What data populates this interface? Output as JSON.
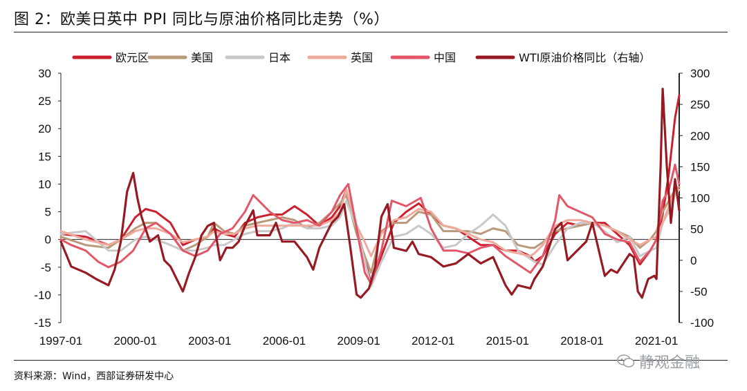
{
  "title": "图 2：欧美日英中 PPI 同比与原油价格同比走势（%）",
  "source": "资料来源：Wind，西部证券研发中心",
  "watermark": "静观金融",
  "chart_data": {
    "type": "line",
    "title": "图 2：欧美日英中 PPI 同比与原油价格同比走势（%）",
    "xlabel": "",
    "ylabel": "",
    "x_ticks": [
      "1997-01",
      "2000-01",
      "2003-01",
      "2006-01",
      "2009-01",
      "2012-01",
      "2015-01",
      "2018-01",
      "2021-01"
    ],
    "ylim": [
      -15,
      30
    ],
    "y_ticks": [
      -15,
      -10,
      -5,
      0,
      5,
      10,
      15,
      20,
      25,
      30
    ],
    "y2lim": [
      -100,
      300
    ],
    "y2_ticks": [
      -100,
      -50,
      0,
      50,
      100,
      150,
      200,
      250,
      300
    ],
    "xlim": [
      "1997-01",
      "2021-12"
    ],
    "legend_position": "top",
    "grid": false,
    "series": [
      {
        "name": "欧元区",
        "color": "#cc1f2e",
        "axis": "left",
        "x": [
          "1997-01",
          "1998-01",
          "1998-12",
          "1999-06",
          "2000-01",
          "2000-06",
          "2000-11",
          "2001-06",
          "2001-12",
          "2002-06",
          "2002-12",
          "2003-03",
          "2003-08",
          "2004-01",
          "2004-06",
          "2004-12",
          "2005-06",
          "2005-12",
          "2006-06",
          "2006-12",
          "2007-06",
          "2007-12",
          "2008-04",
          "2008-07",
          "2008-12",
          "2009-04",
          "2009-07",
          "2009-12",
          "2010-06",
          "2010-12",
          "2011-06",
          "2011-12",
          "2012-06",
          "2012-12",
          "2013-06",
          "2013-12",
          "2014-06",
          "2014-12",
          "2015-06",
          "2015-12",
          "2016-02",
          "2016-06",
          "2016-12",
          "2017-06",
          "2017-12",
          "2018-06",
          "2018-12",
          "2019-06",
          "2019-12",
          "2020-05",
          "2020-10",
          "2021-01",
          "2021-04",
          "2021-07",
          "2021-10",
          "2021-12"
        ],
        "y": [
          1,
          0.5,
          -1,
          0,
          4,
          5.5,
          5,
          3,
          -1,
          0,
          0.5,
          2,
          1,
          0.5,
          3,
          4,
          4.5,
          4.5,
          6,
          4.5,
          2.5,
          4,
          6,
          9,
          2,
          -3.5,
          -8,
          -3,
          3,
          5,
          6.5,
          4.5,
          2.5,
          2,
          0.5,
          -1,
          -1,
          -2,
          -2,
          -3,
          -4,
          -3,
          1,
          3,
          2.5,
          3,
          3,
          1,
          -1,
          -4.5,
          -2,
          0,
          4.5,
          12,
          22,
          26
        ]
      },
      {
        "name": "美国",
        "color": "#b89a7a",
        "axis": "left",
        "x": [
          "1997-01",
          "1998-01",
          "1998-12",
          "1999-06",
          "2000-01",
          "2000-06",
          "2000-11",
          "2001-06",
          "2001-12",
          "2002-06",
          "2002-12",
          "2003-03",
          "2003-08",
          "2004-01",
          "2004-06",
          "2004-12",
          "2005-06",
          "2005-12",
          "2006-06",
          "2006-12",
          "2007-06",
          "2007-12",
          "2008-04",
          "2008-07",
          "2008-12",
          "2009-04",
          "2009-07",
          "2009-12",
          "2010-06",
          "2010-12",
          "2011-06",
          "2011-12",
          "2012-06",
          "2012-12",
          "2013-06",
          "2013-12",
          "2014-06",
          "2014-12",
          "2015-06",
          "2015-12",
          "2016-02",
          "2016-06",
          "2016-12",
          "2017-06",
          "2017-12",
          "2018-06",
          "2018-12",
          "2019-06",
          "2019-12",
          "2020-05",
          "2020-10",
          "2021-01",
          "2021-04",
          "2021-07",
          "2021-10",
          "2021-12"
        ],
        "y": [
          0.5,
          -1,
          -1.5,
          0,
          2,
          3,
          3,
          1,
          -2,
          -1,
          0.5,
          3,
          1.5,
          1,
          2.5,
          3,
          3.5,
          4,
          3.5,
          2,
          3,
          5,
          6.5,
          8,
          1,
          -3,
          -6,
          1.5,
          3,
          3,
          5,
          4.5,
          1.5,
          1.5,
          1.5,
          1,
          2,
          1.5,
          -1,
          -1.5,
          -1.5,
          -0.5,
          1.5,
          2,
          2.5,
          3,
          2.5,
          1.5,
          0.5,
          -1.5,
          0,
          1.5,
          5,
          7,
          9,
          9.5
        ]
      },
      {
        "name": "日本",
        "color": "#c8c8c8",
        "axis": "left",
        "x": [
          "1997-01",
          "1998-01",
          "1998-12",
          "1999-06",
          "2000-01",
          "2000-06",
          "2000-11",
          "2001-06",
          "2001-12",
          "2002-06",
          "2002-12",
          "2003-03",
          "2003-08",
          "2004-01",
          "2004-06",
          "2004-12",
          "2005-06",
          "2005-12",
          "2006-06",
          "2006-12",
          "2007-06",
          "2007-12",
          "2008-04",
          "2008-07",
          "2008-12",
          "2009-04",
          "2009-07",
          "2009-12",
          "2010-06",
          "2010-12",
          "2011-06",
          "2011-12",
          "2012-06",
          "2012-12",
          "2013-06",
          "2013-12",
          "2014-06",
          "2014-12",
          "2015-06",
          "2015-12",
          "2016-02",
          "2016-06",
          "2016-12",
          "2017-06",
          "2017-12",
          "2018-06",
          "2018-12",
          "2019-06",
          "2019-12",
          "2020-05",
          "2020-10",
          "2021-01",
          "2021-04",
          "2021-07",
          "2021-10",
          "2021-12"
        ],
        "y": [
          1,
          1.5,
          -2,
          -2,
          0,
          0.5,
          0,
          -1,
          -2,
          -2,
          -1.5,
          -1,
          -1,
          0,
          1,
          1.5,
          1.5,
          2,
          3,
          2,
          2,
          2.5,
          4,
          7,
          2,
          -4,
          -8.5,
          -4,
          0.5,
          1,
          2.5,
          1,
          -1.5,
          -1,
          1,
          2.5,
          4.5,
          2.5,
          -2,
          -3.5,
          -4,
          -4.5,
          -1,
          2,
          3,
          3,
          1.5,
          -0.5,
          0.5,
          -3,
          -2,
          -1.5,
          3,
          5,
          8,
          9
        ]
      },
      {
        "name": "英国",
        "color": "#eeaa9c",
        "axis": "left",
        "x": [
          "1997-01",
          "1998-01",
          "1998-12",
          "1999-06",
          "2000-01",
          "2000-06",
          "2000-11",
          "2001-06",
          "2001-12",
          "2002-06",
          "2002-12",
          "2003-03",
          "2003-08",
          "2004-01",
          "2004-06",
          "2004-12",
          "2005-06",
          "2005-12",
          "2006-06",
          "2006-12",
          "2007-06",
          "2007-12",
          "2008-04",
          "2008-07",
          "2008-12",
          "2009-04",
          "2009-07",
          "2009-12",
          "2010-06",
          "2010-12",
          "2011-06",
          "2011-12",
          "2012-06",
          "2012-12",
          "2013-06",
          "2013-12",
          "2014-06",
          "2014-12",
          "2015-06",
          "2015-12",
          "2016-02",
          "2016-06",
          "2016-12",
          "2017-06",
          "2017-12",
          "2018-06",
          "2018-12",
          "2019-06",
          "2019-12",
          "2020-05",
          "2020-10",
          "2021-01",
          "2021-04",
          "2021-07",
          "2021-10",
          "2021-12"
        ],
        "y": [
          1.5,
          0,
          -1,
          0,
          1.5,
          2,
          2,
          1,
          -0.5,
          0,
          0.5,
          1.5,
          1,
          1,
          2,
          2.5,
          2.5,
          2.5,
          2.5,
          2.5,
          2.5,
          3.5,
          5,
          9,
          2.5,
          -0.5,
          -3,
          1,
          3.5,
          4,
          5.5,
          5,
          2.5,
          2,
          1,
          0,
          -0.5,
          -2,
          -2.5,
          -3,
          -2.5,
          -1,
          2.5,
          3.5,
          3.5,
          3,
          2.5,
          1.5,
          0,
          -1,
          0,
          0.5,
          3,
          6,
          8.5,
          9
        ]
      },
      {
        "name": "中国",
        "color": "#e25668",
        "axis": "left",
        "x": [
          "1997-01",
          "1997-06",
          "1998-01",
          "1998-07",
          "1998-12",
          "1999-06",
          "1999-12",
          "2000-06",
          "2000-11",
          "2001-06",
          "2001-12",
          "2002-06",
          "2002-12",
          "2003-06",
          "2003-12",
          "2004-06",
          "2004-10",
          "2005-06",
          "2005-12",
          "2006-06",
          "2006-12",
          "2007-06",
          "2007-12",
          "2008-04",
          "2008-08",
          "2008-12",
          "2009-04",
          "2009-07",
          "2009-12",
          "2010-05",
          "2010-12",
          "2011-07",
          "2011-12",
          "2012-06",
          "2012-12",
          "2013-06",
          "2013-12",
          "2014-06",
          "2014-12",
          "2015-06",
          "2015-12",
          "2016-06",
          "2016-12",
          "2017-02",
          "2017-06",
          "2017-12",
          "2018-06",
          "2018-12",
          "2019-06",
          "2019-12",
          "2020-05",
          "2020-10",
          "2021-01",
          "2021-04",
          "2021-07",
          "2021-10",
          "2021-12"
        ],
        "y": [
          0,
          -1,
          -2,
          -4,
          -5,
          -4,
          -2,
          2,
          3,
          1,
          -2,
          -3,
          -2,
          1,
          2,
          5,
          8,
          5,
          3.5,
          3,
          3.5,
          2.5,
          5,
          8,
          10,
          2,
          -6,
          -8,
          -2,
          7,
          6,
          7.5,
          2,
          -2,
          -2,
          -2.5,
          -1.5,
          -1,
          -3,
          -4.5,
          -6,
          -3,
          3.5,
          8,
          6,
          5,
          4,
          1,
          0,
          -0.5,
          -4,
          -2,
          0,
          7,
          9,
          13.5,
          10
        ]
      },
      {
        "name": "WTI原油价格同比（右轴）",
        "color": "#951a22",
        "axis": "right",
        "x": [
          "1997-01",
          "1997-06",
          "1998-01",
          "1998-06",
          "1998-12",
          "1999-03",
          "1999-06",
          "1999-09",
          "1999-12",
          "2000-02",
          "2000-04",
          "2000-08",
          "2000-12",
          "2001-03",
          "2001-06",
          "2001-09",
          "2001-12",
          "2002-03",
          "2002-06",
          "2002-09",
          "2002-12",
          "2003-03",
          "2003-06",
          "2003-09",
          "2003-12",
          "2004-03",
          "2004-06",
          "2004-10",
          "2004-12",
          "2005-06",
          "2005-09",
          "2005-12",
          "2006-06",
          "2006-12",
          "2007-03",
          "2007-06",
          "2007-12",
          "2008-03",
          "2008-06",
          "2008-09",
          "2008-12",
          "2009-02",
          "2009-06",
          "2009-09",
          "2009-12",
          "2010-03",
          "2010-06",
          "2010-12",
          "2011-03",
          "2011-06",
          "2011-12",
          "2012-06",
          "2012-12",
          "2013-06",
          "2013-12",
          "2014-06",
          "2014-12",
          "2015-03",
          "2015-06",
          "2015-12",
          "2016-02",
          "2016-06",
          "2016-12",
          "2017-03",
          "2017-06",
          "2017-12",
          "2018-03",
          "2018-06",
          "2018-12",
          "2019-03",
          "2019-06",
          "2019-12",
          "2020-02",
          "2020-04",
          "2020-06",
          "2020-09",
          "2020-12",
          "2021-01",
          "2021-03",
          "2021-04",
          "2021-06",
          "2021-08",
          "2021-10",
          "2021-12"
        ],
        "y": [
          30,
          -10,
          -20,
          -30,
          -40,
          -15,
          30,
          110,
          140,
          100,
          70,
          30,
          40,
          0,
          -10,
          -30,
          -50,
          -20,
          5,
          40,
          55,
          60,
          0,
          20,
          20,
          30,
          55,
          80,
          40,
          40,
          60,
          30,
          30,
          5,
          -15,
          20,
          60,
          70,
          90,
          20,
          -55,
          -60,
          -45,
          -10,
          70,
          90,
          20,
          15,
          30,
          10,
          5,
          -10,
          -5,
          10,
          -5,
          5,
          -40,
          -55,
          -40,
          -45,
          -30,
          -10,
          50,
          60,
          0,
          20,
          30,
          60,
          -25,
          -15,
          -20,
          10,
          5,
          -50,
          -60,
          -30,
          -25,
          -30,
          150,
          275,
          150,
          60,
          130,
          80
        ]
      }
    ]
  }
}
